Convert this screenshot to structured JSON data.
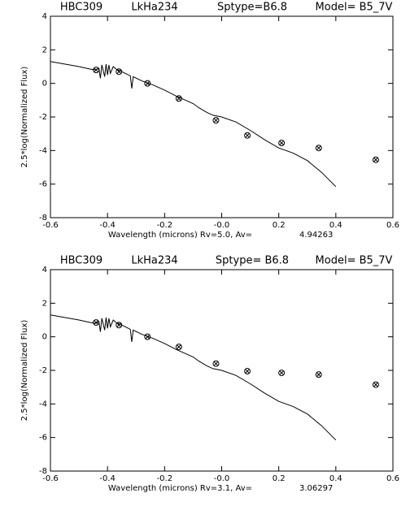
{
  "chart_data": [
    {
      "type": "scatter",
      "title": [
        "HBC309",
        "LkHa234",
        "Sptype=B6.8",
        "Model= B5_7V"
      ],
      "xlabel": "Wavelength (microns) Rv=5.0, Av=",
      "av_value": "4.94263",
      "ylabel": "2.5*log(Normalized Flux)",
      "xlim": [
        -0.6,
        0.6
      ],
      "ylim": [
        -8,
        4
      ],
      "xticks": [
        -0.6,
        -0.4,
        -0.2,
        {
          "value": 0,
          "label": "-0.0"
        },
        0.2,
        0.4,
        0.6
      ],
      "yticks": [
        -8,
        -6,
        -4,
        -2,
        0,
        2,
        4
      ],
      "series": [
        {
          "type": "line",
          "color": "#000000",
          "x": [
            -0.6,
            -0.55,
            -0.5,
            -0.46,
            -0.44,
            -0.43,
            -0.425,
            -0.42,
            -0.41,
            -0.405,
            -0.4,
            -0.395,
            -0.39,
            -0.38,
            -0.37,
            -0.35,
            -0.32,
            -0.315,
            -0.31,
            -0.28,
            -0.24,
            -0.2,
            -0.16,
            -0.12,
            -0.1,
            -0.08,
            -0.05,
            -0.03,
            0.0,
            0.05,
            0.1,
            0.15,
            0.2,
            0.25,
            0.3,
            0.35,
            0.4
          ],
          "values": [
            1.3,
            1.15,
            1.0,
            0.85,
            0.8,
            0.9,
            0.3,
            1.1,
            0.4,
            1.15,
            0.5,
            1.1,
            0.6,
            1.0,
            0.85,
            0.7,
            0.45,
            -0.3,
            0.4,
            0.15,
            -0.1,
            -0.4,
            -0.75,
            -1.05,
            -1.2,
            -1.45,
            -1.75,
            -1.9,
            -2.0,
            -2.3,
            -2.8,
            -3.35,
            -3.85,
            -4.15,
            -4.6,
            -5.3,
            -6.15
          ]
        },
        {
          "type": "scatter",
          "color": "#000000",
          "x": [
            -0.44,
            -0.36,
            -0.26,
            -0.15,
            -0.02,
            0.09,
            0.21,
            0.34,
            0.54
          ],
          "values": [
            0.8,
            0.7,
            0.0,
            -0.9,
            -2.2,
            -3.1,
            -3.55,
            -3.85,
            -4.55
          ]
        }
      ]
    },
    {
      "type": "scatter",
      "title": [
        "HBC309",
        "LkHa234",
        "Sptype= B6.8",
        "Model= B5_7V"
      ],
      "xlabel": "Wavelength (microns) Rv=3.1,  Av=",
      "av_value": "3.06297",
      "ylabel": "2.5*log(Normalized Flux)",
      "xlim": [
        -0.6,
        0.6
      ],
      "ylim": [
        -8,
        4
      ],
      "xticks": [
        -0.6,
        -0.4,
        -0.2,
        {
          "value": 0,
          "label": "-0.0"
        },
        0.2,
        0.4,
        0.6
      ],
      "yticks": [
        -8,
        -6,
        -4,
        -2,
        0,
        2,
        4
      ],
      "series": [
        {
          "type": "line",
          "color": "#000000",
          "x": [
            -0.6,
            -0.55,
            -0.5,
            -0.46,
            -0.44,
            -0.43,
            -0.425,
            -0.42,
            -0.41,
            -0.405,
            -0.4,
            -0.395,
            -0.39,
            -0.38,
            -0.37,
            -0.35,
            -0.32,
            -0.315,
            -0.31,
            -0.28,
            -0.24,
            -0.2,
            -0.16,
            -0.12,
            -0.1,
            -0.08,
            -0.05,
            -0.03,
            0.0,
            0.05,
            0.1,
            0.15,
            0.2,
            0.25,
            0.3,
            0.35,
            0.4
          ],
          "values": [
            1.3,
            1.15,
            1.0,
            0.85,
            0.8,
            0.9,
            0.3,
            1.1,
            0.4,
            1.15,
            0.5,
            1.1,
            0.6,
            1.0,
            0.85,
            0.7,
            0.45,
            -0.3,
            0.4,
            0.15,
            -0.1,
            -0.4,
            -0.75,
            -1.05,
            -1.2,
            -1.45,
            -1.75,
            -1.9,
            -2.0,
            -2.3,
            -2.8,
            -3.35,
            -3.85,
            -4.15,
            -4.6,
            -5.3,
            -6.15
          ]
        },
        {
          "type": "scatter",
          "color": "#000000",
          "x": [
            -0.44,
            -0.36,
            -0.26,
            -0.15,
            -0.02,
            0.09,
            0.21,
            0.34,
            0.54
          ],
          "values": [
            0.85,
            0.7,
            0.0,
            -0.6,
            -1.6,
            -2.05,
            -2.15,
            -2.25,
            -2.85
          ]
        }
      ]
    }
  ]
}
